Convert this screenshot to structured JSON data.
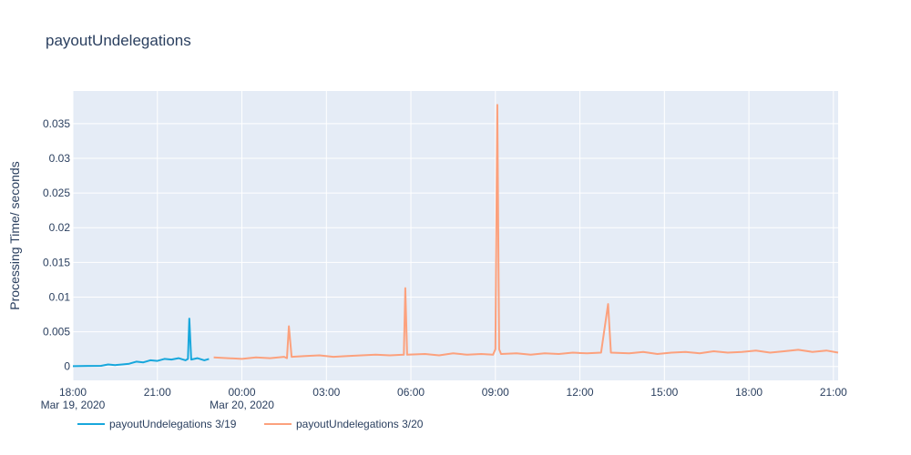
{
  "chart_data": {
    "type": "line",
    "title": "payoutUndelegations",
    "xlabel": "",
    "ylabel": "Processing Time/ seconds",
    "xlim": [
      "2020-03-19 18:00",
      "2020-03-20 21:10"
    ],
    "ylim": [
      -0.002,
      0.0397
    ],
    "grid": true,
    "legend_position": "bottom-left",
    "plot_background": "#e5ecf6",
    "x_ticks": [
      {
        "label": "18:00",
        "sublabel": "Mar 19, 2020",
        "value": "2020-03-19 18:00"
      },
      {
        "label": "21:00",
        "sublabel": "",
        "value": "2020-03-19 21:00"
      },
      {
        "label": "00:00",
        "sublabel": "Mar 20, 2020",
        "value": "2020-03-20 00:00"
      },
      {
        "label": "03:00",
        "sublabel": "",
        "value": "2020-03-20 03:00"
      },
      {
        "label": "06:00",
        "sublabel": "",
        "value": "2020-03-20 06:00"
      },
      {
        "label": "09:00",
        "sublabel": "",
        "value": "2020-03-20 09:00"
      },
      {
        "label": "12:00",
        "sublabel": "",
        "value": "2020-03-20 12:00"
      },
      {
        "label": "15:00",
        "sublabel": "",
        "value": "2020-03-20 15:00"
      },
      {
        "label": "18:00",
        "sublabel": "",
        "value": "2020-03-20 18:00"
      },
      {
        "label": "21:00",
        "sublabel": "",
        "value": "2020-03-20 21:00"
      }
    ],
    "y_ticks": [
      {
        "label": "0",
        "value": 0
      },
      {
        "label": "0.005",
        "value": 0.005
      },
      {
        "label": "0.01",
        "value": 0.01
      },
      {
        "label": "0.015",
        "value": 0.015
      },
      {
        "label": "0.02",
        "value": 0.02
      },
      {
        "label": "0.025",
        "value": 0.025
      },
      {
        "label": "0.03",
        "value": 0.03
      },
      {
        "label": "0.035",
        "value": 0.035
      }
    ],
    "series": [
      {
        "name": "payoutUndelegations 3/19",
        "color": "#17a7dc",
        "points": [
          [
            "2020-03-19 18:00",
            5e-05
          ],
          [
            "2020-03-19 18:30",
            8e-05
          ],
          [
            "2020-03-19 19:00",
            0.0001
          ],
          [
            "2020-03-19 19:15",
            0.0003
          ],
          [
            "2020-03-19 19:30",
            0.0002
          ],
          [
            "2020-03-19 19:45",
            0.0003
          ],
          [
            "2020-03-19 20:00",
            0.0004
          ],
          [
            "2020-03-19 20:15",
            0.0007
          ],
          [
            "2020-03-19 20:30",
            0.0006
          ],
          [
            "2020-03-19 20:45",
            0.0009
          ],
          [
            "2020-03-19 21:00",
            0.0008
          ],
          [
            "2020-03-19 21:15",
            0.0011
          ],
          [
            "2020-03-19 21:30",
            0.001
          ],
          [
            "2020-03-19 21:45",
            0.0012
          ],
          [
            "2020-03-19 22:00",
            0.0009
          ],
          [
            "2020-03-19 22:05",
            0.0011
          ],
          [
            "2020-03-19 22:08",
            0.0069
          ],
          [
            "2020-03-19 22:12",
            0.001
          ],
          [
            "2020-03-19 22:25",
            0.0012
          ],
          [
            "2020-03-19 22:40",
            0.0009
          ],
          [
            "2020-03-19 22:50",
            0.0011
          ]
        ]
      },
      {
        "name": "payoutUndelegations 3/20",
        "color": "#fca17d",
        "points": [
          [
            "2020-03-19 23:00",
            0.0013
          ],
          [
            "2020-03-19 23:30",
            0.0012
          ],
          [
            "2020-03-20 00:00",
            0.0011
          ],
          [
            "2020-03-20 00:30",
            0.0013
          ],
          [
            "2020-03-20 01:00",
            0.0012
          ],
          [
            "2020-03-20 01:30",
            0.0014
          ],
          [
            "2020-03-20 01:36",
            0.0012
          ],
          [
            "2020-03-20 01:40",
            0.0058
          ],
          [
            "2020-03-20 01:46",
            0.0014
          ],
          [
            "2020-03-20 02:15",
            0.0015
          ],
          [
            "2020-03-20 02:45",
            0.0016
          ],
          [
            "2020-03-20 03:15",
            0.0014
          ],
          [
            "2020-03-20 03:45",
            0.0015
          ],
          [
            "2020-03-20 04:15",
            0.0016
          ],
          [
            "2020-03-20 04:45",
            0.0017
          ],
          [
            "2020-03-20 05:15",
            0.0016
          ],
          [
            "2020-03-20 05:45",
            0.0017
          ],
          [
            "2020-03-20 05:48",
            0.0113
          ],
          [
            "2020-03-20 05:52",
            0.0017
          ],
          [
            "2020-03-20 06:30",
            0.0018
          ],
          [
            "2020-03-20 07:00",
            0.0016
          ],
          [
            "2020-03-20 07:30",
            0.0019
          ],
          [
            "2020-03-20 08:00",
            0.0017
          ],
          [
            "2020-03-20 08:30",
            0.0018
          ],
          [
            "2020-03-20 08:55",
            0.0017
          ],
          [
            "2020-03-20 09:00",
            0.0025
          ],
          [
            "2020-03-20 09:04",
            0.0377
          ],
          [
            "2020-03-20 09:08",
            0.0025
          ],
          [
            "2020-03-20 09:12",
            0.0018
          ],
          [
            "2020-03-20 09:45",
            0.0019
          ],
          [
            "2020-03-20 10:15",
            0.0017
          ],
          [
            "2020-03-20 10:45",
            0.0019
          ],
          [
            "2020-03-20 11:15",
            0.0018
          ],
          [
            "2020-03-20 11:45",
            0.002
          ],
          [
            "2020-03-20 12:15",
            0.0019
          ],
          [
            "2020-03-20 12:45",
            0.002
          ],
          [
            "2020-03-20 13:00",
            0.009
          ],
          [
            "2020-03-20 13:06",
            0.002
          ],
          [
            "2020-03-20 13:45",
            0.0019
          ],
          [
            "2020-03-20 14:15",
            0.0021
          ],
          [
            "2020-03-20 14:45",
            0.0018
          ],
          [
            "2020-03-20 15:15",
            0.002
          ],
          [
            "2020-03-20 15:45",
            0.0021
          ],
          [
            "2020-03-20 16:15",
            0.0019
          ],
          [
            "2020-03-20 16:45",
            0.0022
          ],
          [
            "2020-03-20 17:15",
            0.002
          ],
          [
            "2020-03-20 17:45",
            0.0021
          ],
          [
            "2020-03-20 18:15",
            0.0023
          ],
          [
            "2020-03-20 18:45",
            0.002
          ],
          [
            "2020-03-20 19:15",
            0.0022
          ],
          [
            "2020-03-20 19:45",
            0.0024
          ],
          [
            "2020-03-20 20:15",
            0.0021
          ],
          [
            "2020-03-20 20:45",
            0.0023
          ],
          [
            "2020-03-20 21:10",
            0.002
          ]
        ]
      }
    ]
  }
}
